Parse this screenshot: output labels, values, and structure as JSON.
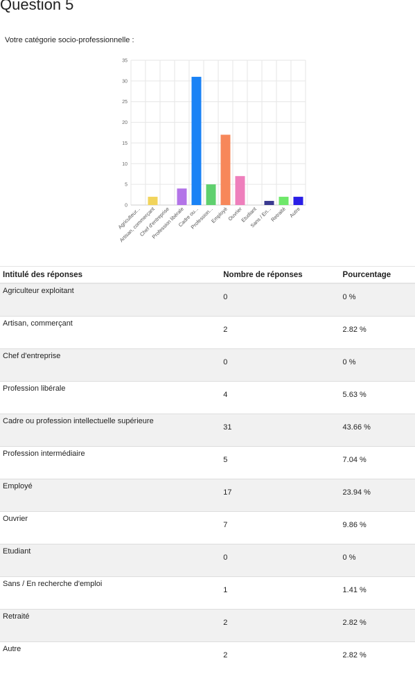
{
  "page": {
    "title": "Question 5",
    "subtitle": "Votre catégorie socio-professionnelle :"
  },
  "chart_data": {
    "type": "bar",
    "categories": [
      "Agriculteur...",
      "Artisan, commerçant",
      "Chef d'entreprise",
      "Profession libérale",
      "Cadre ou...",
      "Profession...",
      "Employé",
      "Ouvrier",
      "Etudiant",
      "Sans / En...",
      "Retraité",
      "Autre"
    ],
    "values": [
      0,
      2,
      0,
      4,
      31,
      5,
      17,
      7,
      0,
      1,
      2,
      2
    ],
    "colors": [
      "#e06666",
      "#f1d45c",
      "#999999",
      "#b374e8",
      "#1a82f5",
      "#5fd06e",
      "#f7875a",
      "#ee7fbc",
      "#aaaaaa",
      "#3a3a90",
      "#6ee86a",
      "#2a1fe6"
    ],
    "ylim": [
      0,
      35
    ],
    "yticks": [
      0,
      5,
      10,
      15,
      20,
      25,
      30,
      35
    ],
    "grid": true,
    "legend": "none",
    "title": "",
    "xlabel": "",
    "ylabel": ""
  },
  "table": {
    "headers": [
      "Intitulé des réponses",
      "Nombre de réponses",
      "Pourcentage"
    ],
    "rows": [
      [
        "Agriculteur exploitant",
        "0",
        "0 %"
      ],
      [
        "Artisan, commerçant",
        "2",
        "2.82 %"
      ],
      [
        "Chef d'entreprise",
        "0",
        "0 %"
      ],
      [
        "Profession libérale",
        "4",
        "5.63 %"
      ],
      [
        "Cadre ou profession intellectuelle supérieure",
        "31",
        "43.66 %"
      ],
      [
        "Profession intermédiaire",
        "5",
        "7.04 %"
      ],
      [
        "Employé",
        "17",
        "23.94 %"
      ],
      [
        "Ouvrier",
        "7",
        "9.86 %"
      ],
      [
        "Etudiant",
        "0",
        "0 %"
      ],
      [
        "Sans / En recherche d'emploi",
        "1",
        "1.41 %"
      ],
      [
        "Retraité",
        "2",
        "2.82 %"
      ],
      [
        "Autre",
        "2",
        "2.82 %"
      ]
    ]
  }
}
